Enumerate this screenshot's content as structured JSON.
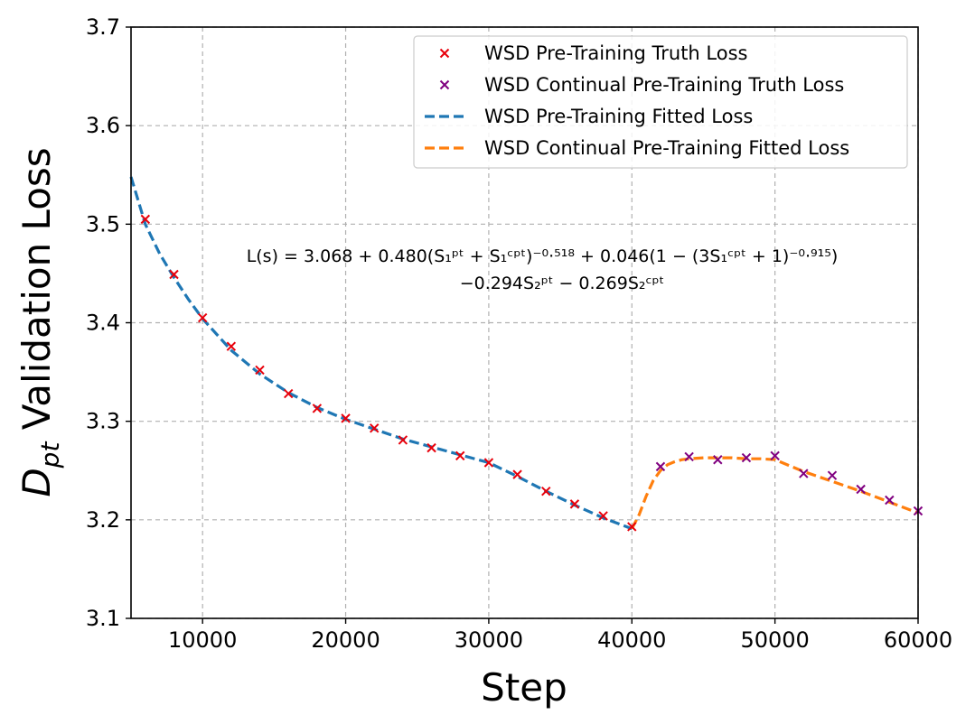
{
  "chart_data": {
    "type": "line",
    "xlabel": "Step",
    "ylabel_main": "D",
    "ylabel_sub": "pt",
    "ylabel_rest": " Validation Loss",
    "xlim": [
      5000,
      60000
    ],
    "ylim": [
      3.1,
      3.7
    ],
    "x_ticks": [
      10000,
      20000,
      30000,
      40000,
      50000,
      60000
    ],
    "y_ticks": [
      3.1,
      3.2,
      3.3,
      3.4,
      3.5,
      3.6,
      3.7
    ],
    "grid": true,
    "legend_position": "top-right",
    "series": [
      {
        "name": "WSD Pre-Training Truth Loss",
        "kind": "scatter",
        "marker": "x",
        "color": "#e8000b",
        "x": [
          6000,
          8000,
          10000,
          12000,
          14000,
          16000,
          18000,
          20000,
          22000,
          24000,
          26000,
          28000,
          30000,
          32000,
          34000,
          36000,
          38000,
          40000
        ],
        "y": [
          3.505,
          3.449,
          3.405,
          3.376,
          3.352,
          3.328,
          3.313,
          3.303,
          3.293,
          3.281,
          3.273,
          3.265,
          3.258,
          3.246,
          3.229,
          3.216,
          3.204,
          3.193
        ]
      },
      {
        "name": "WSD Continual Pre-Training Truth Loss",
        "kind": "scatter",
        "marker": "x",
        "color": "#800080",
        "x": [
          42000,
          44000,
          46000,
          48000,
          50000,
          52000,
          54000,
          56000,
          58000,
          60000
        ],
        "y": [
          3.254,
          3.264,
          3.261,
          3.263,
          3.265,
          3.247,
          3.245,
          3.231,
          3.22,
          3.209
        ]
      },
      {
        "name": "WSD Pre-Training Fitted Loss",
        "kind": "line",
        "dash": true,
        "color": "#1f77b4",
        "x": [
          5000,
          6000,
          7000,
          8000,
          9000,
          10000,
          12000,
          14000,
          16000,
          18000,
          20000,
          22000,
          24000,
          26000,
          28000,
          30000,
          32000,
          34000,
          36000,
          38000,
          40000
        ],
        "y": [
          3.548,
          3.5,
          3.47,
          3.446,
          3.424,
          3.404,
          3.372,
          3.348,
          3.329,
          3.314,
          3.302,
          3.292,
          3.282,
          3.274,
          3.266,
          3.258,
          3.244,
          3.229,
          3.215,
          3.202,
          3.191
        ]
      },
      {
        "name": "WSD Continual Pre-Training Fitted Loss",
        "kind": "line",
        "dash": true,
        "color": "#ff7f0e",
        "x": [
          40000,
          40500,
          41000,
          41500,
          42000,
          42500,
          43000,
          43500,
          44000,
          45000,
          46000,
          47000,
          48000,
          49000,
          50000,
          51000,
          52000,
          54000,
          56000,
          58000,
          60000
        ],
        "y": [
          3.191,
          3.205,
          3.224,
          3.24,
          3.25,
          3.256,
          3.259,
          3.261,
          3.262,
          3.263,
          3.263,
          3.263,
          3.262,
          3.262,
          3.261,
          3.255,
          3.249,
          3.239,
          3.229,
          3.218,
          3.207
        ]
      }
    ],
    "annotation": {
      "line1": "L(s) = 3.068 + 0.480(S₁ᵖᵗ + S₁ᶜᵖᵗ)⁻⁰·⁵¹⁸ + 0.046(1 − (3S₁ᶜᵖᵗ + 1)⁻⁰·⁹¹⁵)",
      "line2": "−0.294S₂ᵖᵗ − 0.269S₂ᶜᵖᵗ"
    }
  }
}
